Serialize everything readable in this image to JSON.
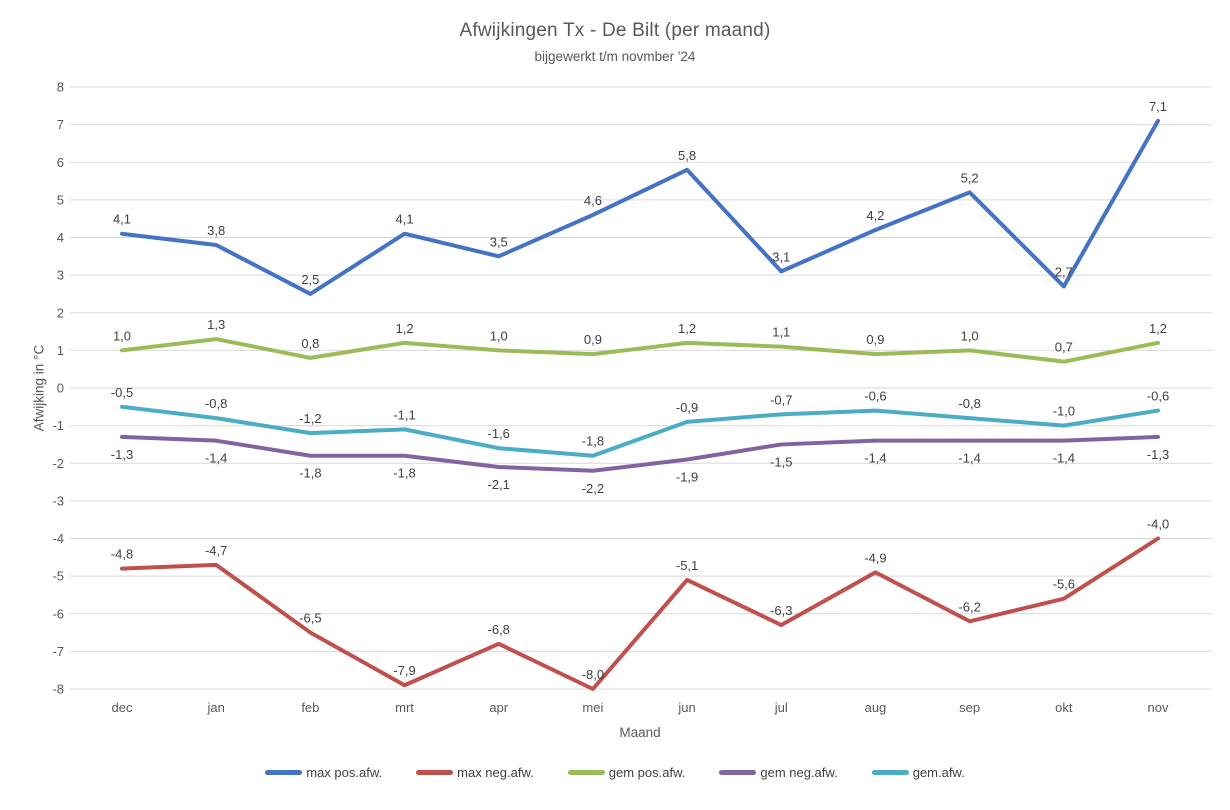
{
  "title": "Afwijkingen Tx - De Bilt (per maand)",
  "subtitle": "bijgewerkt t/m novmber '24",
  "chart_data": {
    "type": "line",
    "title": "Afwijkingen Tx - De Bilt (per maand)",
    "subtitle": "bijgewerkt t/m novmber '24",
    "xlabel": "Maand",
    "ylabel": "Afwijking in °C",
    "categories": [
      "dec",
      "jan",
      "feb",
      "mrt",
      "apr",
      "mei",
      "jun",
      "jul",
      "aug",
      "sep",
      "okt",
      "nov"
    ],
    "series": [
      {
        "name": "max pos.afw.",
        "color": "#4472C4",
        "label_position": "above",
        "values": [
          4.1,
          3.8,
          2.5,
          4.1,
          3.5,
          4.6,
          5.8,
          3.1,
          4.2,
          5.2,
          2.7,
          7.1
        ]
      },
      {
        "name": "max neg.afw.",
        "color": "#C0504D",
        "label_position": "above",
        "values": [
          -4.8,
          -4.7,
          -6.5,
          -7.9,
          -6.8,
          -8.0,
          -5.1,
          -6.3,
          -4.9,
          -6.2,
          -5.6,
          -4.0
        ]
      },
      {
        "name": "gem pos.afw.",
        "color": "#9BBB59",
        "label_position": "above",
        "values": [
          1.0,
          1.3,
          0.8,
          1.2,
          1.0,
          0.9,
          1.2,
          1.1,
          0.9,
          1.0,
          0.7,
          1.2
        ]
      },
      {
        "name": "gem neg.afw.",
        "color": "#8064A2",
        "label_position": "below",
        "values": [
          -1.3,
          -1.4,
          -1.8,
          -1.8,
          -2.1,
          -2.2,
          -1.9,
          -1.5,
          -1.4,
          -1.4,
          -1.4,
          -1.3
        ]
      },
      {
        "name": "gem.afw.",
        "color": "#4BACC6",
        "label_position": "above",
        "values": [
          -0.5,
          -0.8,
          -1.2,
          -1.1,
          -1.6,
          -1.8,
          -0.9,
          -0.7,
          -0.6,
          -0.8,
          -1.0,
          -0.6
        ]
      }
    ],
    "ylim": [
      -8,
      8
    ],
    "ytick_step": 1,
    "yticks": [
      8,
      7,
      6,
      5,
      4,
      3,
      2,
      1,
      0,
      -1,
      -2,
      -3,
      -4,
      -5,
      -6,
      -7,
      -8
    ],
    "grid": true,
    "legend_position": "bottom",
    "decimal_separator": ","
  },
  "style": {
    "gridline_color": "#D9D9D9",
    "tick_label_color": "#595959",
    "data_label_color": "#404040",
    "title_color": "#595959",
    "background": "#FFFFFF"
  }
}
